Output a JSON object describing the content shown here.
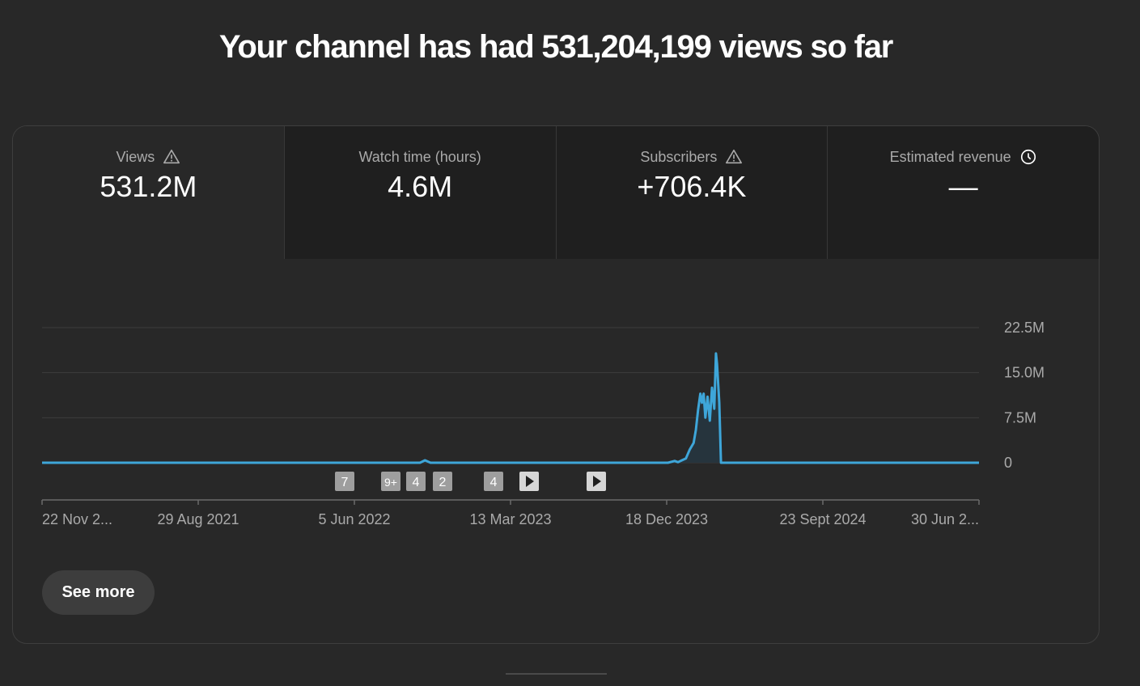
{
  "headline": "Your channel has had 531,204,199 views so far",
  "tabs": [
    {
      "label": "Views",
      "value": "531.2M",
      "icon": "warning-icon",
      "active": true
    },
    {
      "label": "Watch time (hours)",
      "value": "4.6M",
      "icon": "",
      "active": false
    },
    {
      "label": "Subscribers",
      "value": "+706.4K",
      "icon": "warning-icon",
      "active": false
    },
    {
      "label": "Estimated revenue",
      "value": "—",
      "icon": "clock-icon",
      "active": false
    }
  ],
  "markers": [
    "7",
    "9+",
    "4",
    "2",
    "4",
    "play",
    "play"
  ],
  "see_more_label": "See more",
  "colors": {
    "line": "#3ea6d9",
    "fill": "#26343d",
    "background": "#282828",
    "tab_inactive": "#1f1f1f"
  },
  "chart_data": {
    "type": "line",
    "ylim": [
      0,
      22500000
    ],
    "y_ticks": [
      {
        "value": 0,
        "label": "0"
      },
      {
        "value": 7500000,
        "label": "7.5M"
      },
      {
        "value": 15000000,
        "label": "15.0M"
      },
      {
        "value": 22500000,
        "label": "22.5M"
      }
    ],
    "x_tick_labels": [
      "22 Nov 2...",
      "29 Aug 2021",
      "5 Jun 2022",
      "13 Mar 2023",
      "18 Dec 2023",
      "23 Sept 2024",
      "30 Jun 2..."
    ],
    "series": [
      {
        "values": [
          [
            "2020-11-22",
            0
          ],
          [
            "2022-10-01",
            0
          ],
          [
            "2022-10-10",
            400000
          ],
          [
            "2022-10-20",
            0
          ],
          [
            "2023-12-20",
            0
          ],
          [
            "2024-01-01",
            300000
          ],
          [
            "2024-01-07",
            100000
          ],
          [
            "2024-01-14",
            400000
          ],
          [
            "2024-01-21",
            700000
          ],
          [
            "2024-01-28",
            2200000
          ],
          [
            "2024-02-04",
            3300000
          ],
          [
            "2024-02-08",
            5500000
          ],
          [
            "2024-02-12",
            8800000
          ],
          [
            "2024-02-16",
            11500000
          ],
          [
            "2024-02-19",
            10000000
          ],
          [
            "2024-02-22",
            11500000
          ],
          [
            "2024-02-25",
            7500000
          ],
          [
            "2024-02-29",
            11000000
          ],
          [
            "2024-03-04",
            7000000
          ],
          [
            "2024-03-08",
            12500000
          ],
          [
            "2024-03-12",
            9000000
          ],
          [
            "2024-03-15",
            18200000
          ],
          [
            "2024-03-17",
            16500000
          ],
          [
            "2024-03-21",
            10000000
          ],
          [
            "2024-03-24",
            0
          ],
          [
            "2025-06-30",
            0
          ]
        ]
      }
    ]
  }
}
